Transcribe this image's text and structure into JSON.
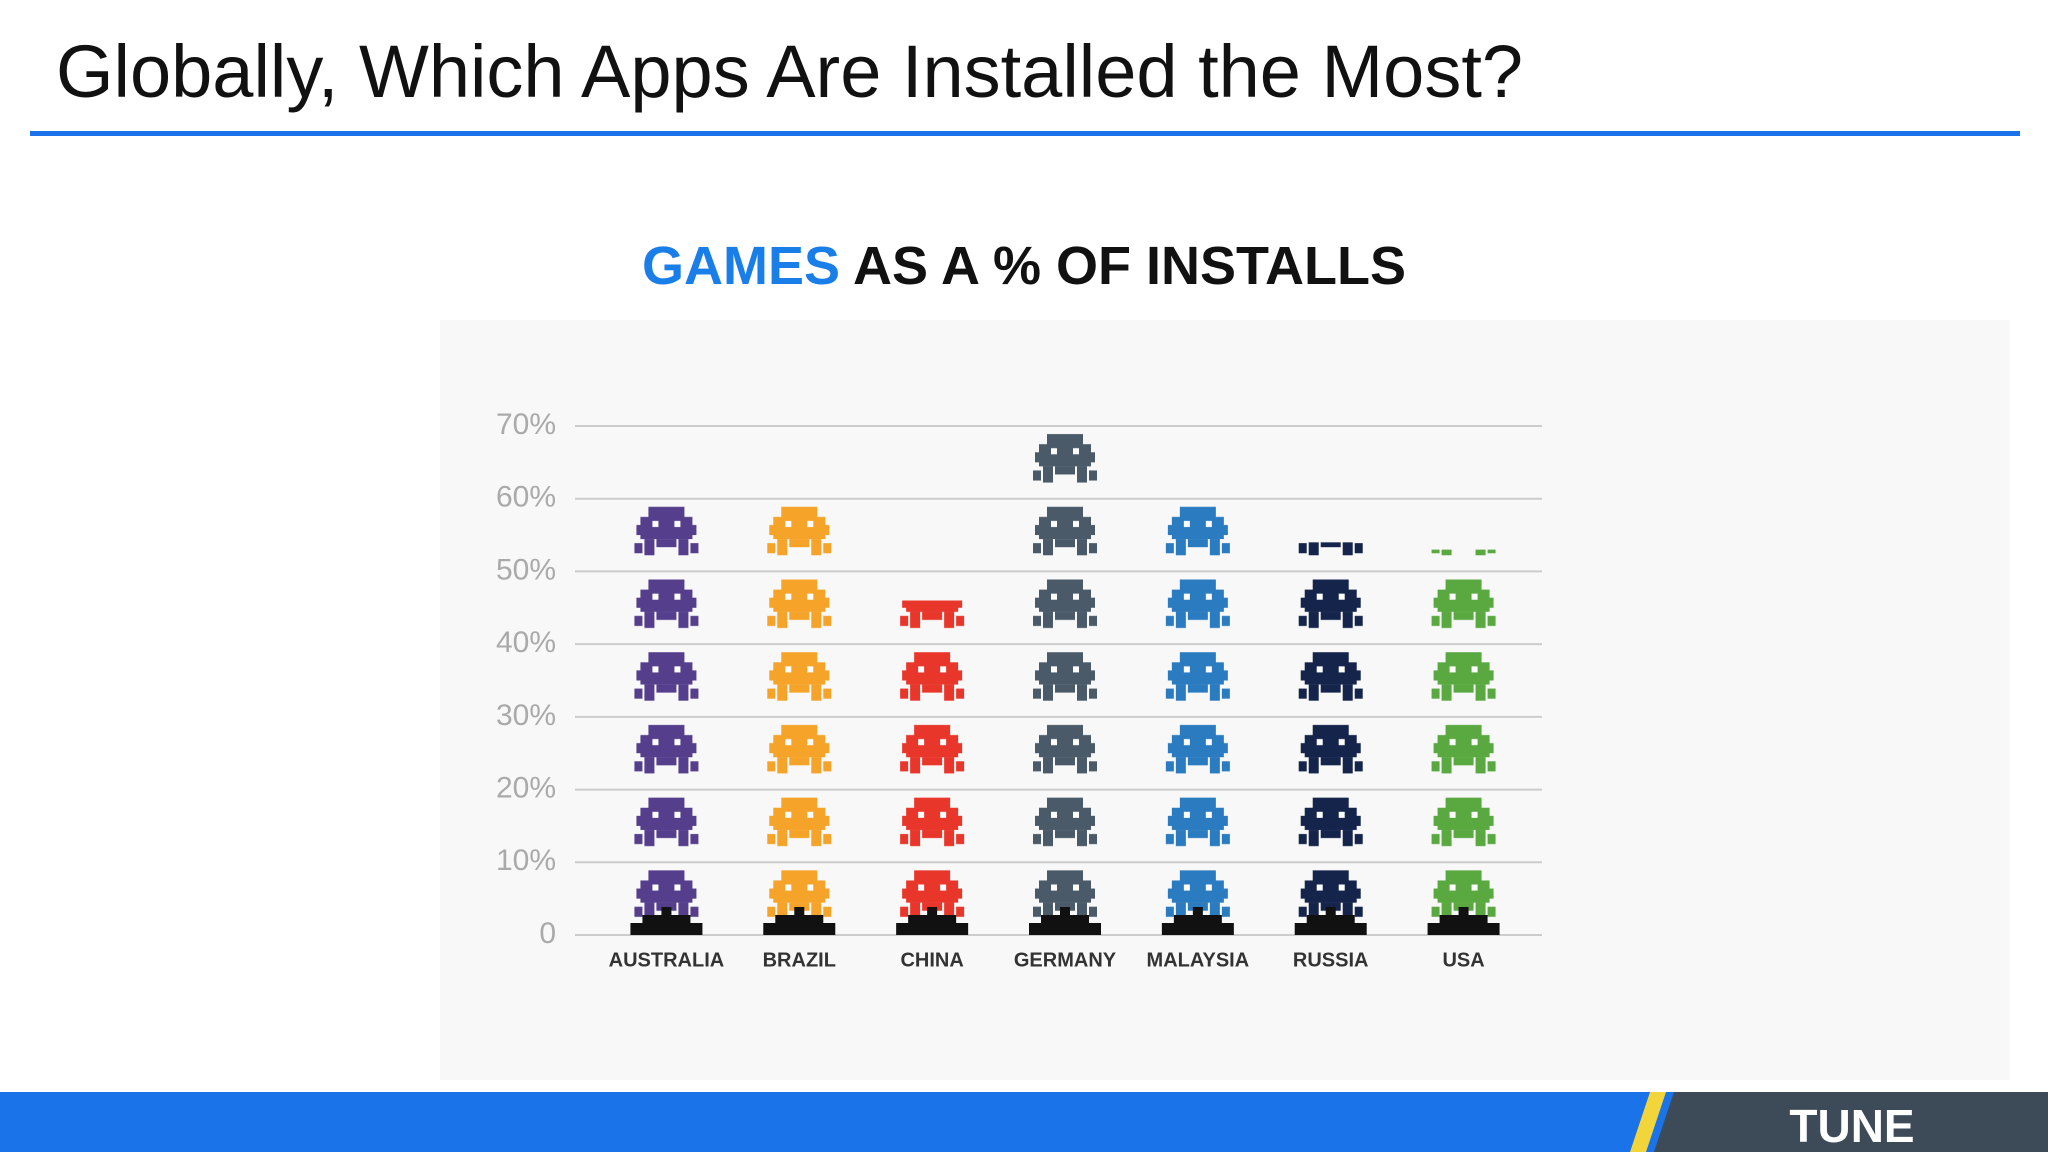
{
  "slide_title": "Globally, Which Apps Are Installed the Most?",
  "logo": "TUNE",
  "chart_data": {
    "type": "pictogram",
    "title_highlight": "GAMES",
    "title": "AS A % OF INSTALLS",
    "categories": [
      "AUSTRALIA",
      "BRAZIL",
      "CHINA",
      "GERMANY",
      "MALAYSIA",
      "RUSSIA",
      "USA"
    ],
    "values": [
      62,
      61,
      46,
      69,
      62,
      54,
      53
    ],
    "colors": [
      "#553f8c",
      "#f6a32a",
      "#e8362b",
      "#4a5a68",
      "#2b7bc0",
      "#14244a",
      "#5aa840"
    ],
    "ylim": [
      0,
      70
    ],
    "yticks": [
      0,
      {
        "value": 10,
        "label": "10%"
      },
      {
        "value": 20,
        "label": "20%"
      },
      {
        "value": 30,
        "label": "30%"
      },
      {
        "value": 40,
        "label": "40%"
      },
      {
        "value": 50,
        "label": "50%"
      },
      {
        "value": 60,
        "label": "60%"
      },
      {
        "value": 70,
        "label": "70%"
      }
    ],
    "grid": true
  }
}
